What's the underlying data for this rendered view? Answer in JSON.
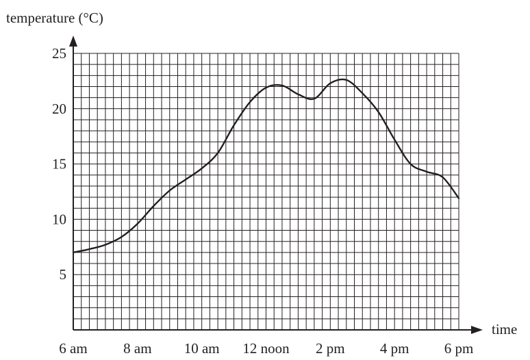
{
  "chart_data": {
    "type": "line",
    "xlabel": "time",
    "ylabel": "temperature (°C)",
    "x_tick_labels": [
      "6 am",
      "8 am",
      "10 am",
      "12 noon",
      "2 pm",
      "4 pm",
      "6 pm"
    ],
    "y_tick_labels": [
      "5",
      "10",
      "15",
      "20",
      "25"
    ],
    "x_unit": "hours since 6 am",
    "xlim": [
      0,
      12
    ],
    "ylim": [
      0,
      25
    ],
    "x_ticks": [
      0,
      2,
      4,
      6,
      8,
      10,
      12
    ],
    "y_ticks": [
      5,
      10,
      15,
      20,
      25
    ],
    "grid": true,
    "grid_minor_x": 0.25,
    "grid_minor_y": 1,
    "series": [
      {
        "values": [
          [
            0,
            7.0
          ],
          [
            0.5,
            7.3
          ],
          [
            1,
            7.7
          ],
          [
            1.5,
            8.4
          ],
          [
            2,
            9.6
          ],
          [
            2.5,
            11.2
          ],
          [
            3,
            12.6
          ],
          [
            3.5,
            13.6
          ],
          [
            4,
            14.6
          ],
          [
            4.5,
            16.0
          ],
          [
            5,
            18.5
          ],
          [
            5.5,
            20.6
          ],
          [
            6,
            21.9
          ],
          [
            6.5,
            22.1
          ],
          [
            7,
            21.3
          ],
          [
            7.5,
            20.9
          ],
          [
            8,
            22.3
          ],
          [
            8.5,
            22.6
          ],
          [
            9,
            21.4
          ],
          [
            9.5,
            19.7
          ],
          [
            10,
            17.2
          ],
          [
            10.5,
            15.0
          ],
          [
            11,
            14.3
          ],
          [
            11.5,
            13.8
          ],
          [
            12,
            11.9
          ]
        ]
      }
    ]
  }
}
